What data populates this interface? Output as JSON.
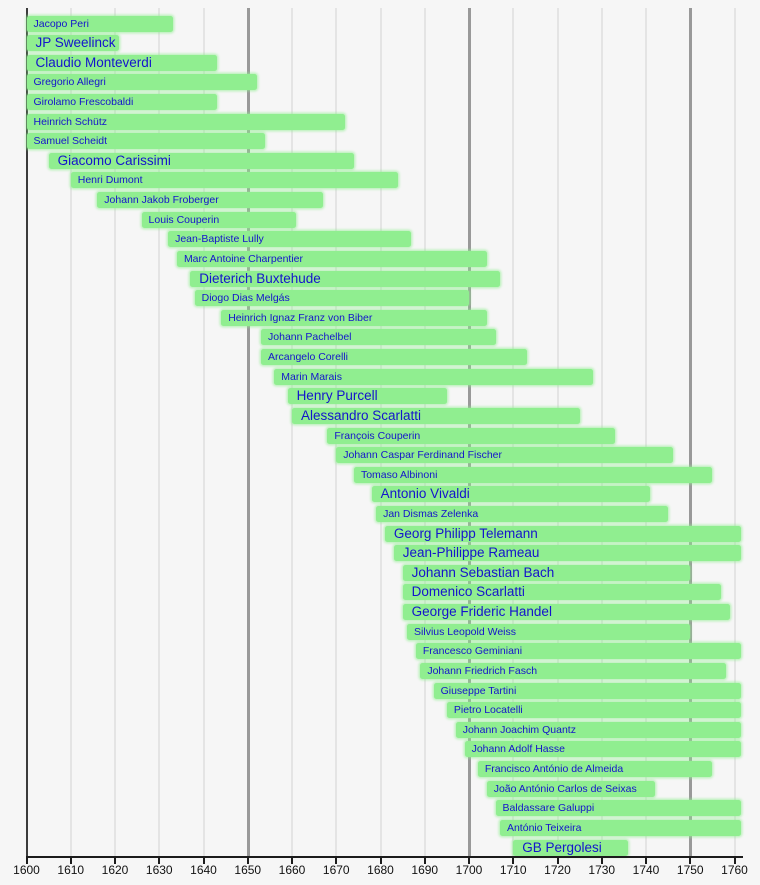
{
  "chart_data": {
    "type": "bar",
    "subtype": "timeline-gantt",
    "title": "",
    "xlabel": "",
    "ylabel": "",
    "description_colors": {
      "bar_fill": "#90EE90",
      "bar_label_text": "#1414CC",
      "background": "#F6F6F6",
      "minor_gridline": "#E4E4E4",
      "major_gridline": "#999999",
      "axis_line": "#1C1C1C"
    },
    "x_axis": {
      "min": 1600,
      "max": 1760,
      "tick_interval": 10,
      "ticks": [
        1600,
        1610,
        1620,
        1630,
        1640,
        1650,
        1660,
        1670,
        1680,
        1690,
        1700,
        1710,
        1720,
        1730,
        1740,
        1750,
        1760
      ],
      "major_gridlines": [
        1650,
        1700,
        1750
      ],
      "grid": "on",
      "legend": "none"
    },
    "bars": [
      {
        "name": "Jacopo Peri",
        "start": 1600,
        "end": 1633,
        "clip_start": true,
        "clip_end": false,
        "size": "small"
      },
      {
        "name": "JP Sweelinck",
        "start": 1600,
        "end": 1621,
        "clip_start": true,
        "clip_end": false,
        "size": "large"
      },
      {
        "name": "Claudio Monteverdi",
        "start": 1600,
        "end": 1643,
        "clip_start": true,
        "clip_end": false,
        "size": "large"
      },
      {
        "name": "Gregorio Allegri",
        "start": 1600,
        "end": 1652,
        "clip_start": true,
        "clip_end": false,
        "size": "small"
      },
      {
        "name": "Girolamo Frescobaldi",
        "start": 1600,
        "end": 1643,
        "clip_start": true,
        "clip_end": false,
        "size": "small"
      },
      {
        "name": "Heinrich Schütz",
        "start": 1600,
        "end": 1672,
        "clip_start": true,
        "clip_end": false,
        "size": "small"
      },
      {
        "name": "Samuel Scheidt",
        "start": 1600,
        "end": 1654,
        "clip_start": true,
        "clip_end": false,
        "size": "small"
      },
      {
        "name": "Giacomo Carissimi",
        "start": 1605,
        "end": 1674,
        "clip_start": false,
        "clip_end": false,
        "size": "large"
      },
      {
        "name": "Henri Dumont",
        "start": 1610,
        "end": 1684,
        "clip_start": false,
        "clip_end": false,
        "size": "small"
      },
      {
        "name": "Johann Jakob Froberger",
        "start": 1616,
        "end": 1667,
        "clip_start": false,
        "clip_end": false,
        "size": "small"
      },
      {
        "name": "Louis Couperin",
        "start": 1626,
        "end": 1661,
        "clip_start": false,
        "clip_end": false,
        "size": "small"
      },
      {
        "name": "Jean-Baptiste Lully",
        "start": 1632,
        "end": 1687,
        "clip_start": false,
        "clip_end": false,
        "size": "small"
      },
      {
        "name": "Marc Antoine Charpentier",
        "start": 1634,
        "end": 1704,
        "clip_start": false,
        "clip_end": false,
        "size": "small"
      },
      {
        "name": "Dieterich Buxtehude",
        "start": 1637,
        "end": 1707,
        "clip_start": false,
        "clip_end": false,
        "size": "large"
      },
      {
        "name": "Diogo Dias Melgás",
        "start": 1638,
        "end": 1700,
        "clip_start": false,
        "clip_end": false,
        "size": "small"
      },
      {
        "name": "Heinrich Ignaz Franz von Biber",
        "start": 1644,
        "end": 1704,
        "clip_start": false,
        "clip_end": false,
        "size": "small"
      },
      {
        "name": "Johann Pachelbel",
        "start": 1653,
        "end": 1706,
        "clip_start": false,
        "clip_end": false,
        "size": "small"
      },
      {
        "name": "Arcangelo Corelli",
        "start": 1653,
        "end": 1713,
        "clip_start": false,
        "clip_end": false,
        "size": "small"
      },
      {
        "name": "Marin Marais",
        "start": 1656,
        "end": 1728,
        "clip_start": false,
        "clip_end": false,
        "size": "small"
      },
      {
        "name": "Henry Purcell",
        "start": 1659,
        "end": 1695,
        "clip_start": false,
        "clip_end": false,
        "size": "large"
      },
      {
        "name": "Alessandro Scarlatti",
        "start": 1660,
        "end": 1725,
        "clip_start": false,
        "clip_end": false,
        "size": "large"
      },
      {
        "name": "François Couperin",
        "start": 1668,
        "end": 1733,
        "clip_start": false,
        "clip_end": false,
        "size": "small"
      },
      {
        "name": "Johann Caspar Ferdinand Fischer",
        "start": 1670,
        "end": 1746,
        "clip_start": false,
        "clip_end": false,
        "size": "small"
      },
      {
        "name": "Tomaso Albinoni",
        "start": 1674,
        "end": 1755,
        "clip_start": false,
        "clip_end": false,
        "size": "small"
      },
      {
        "name": "Antonio Vivaldi",
        "start": 1678,
        "end": 1741,
        "clip_start": false,
        "clip_end": false,
        "size": "large"
      },
      {
        "name": "Jan Dismas Zelenka",
        "start": 1679,
        "end": 1745,
        "clip_start": false,
        "clip_end": false,
        "size": "small"
      },
      {
        "name": "Georg Philipp Telemann",
        "start": 1681,
        "end": 1760,
        "clip_start": false,
        "clip_end": true,
        "size": "large"
      },
      {
        "name": "Jean-Philippe Rameau",
        "start": 1683,
        "end": 1760,
        "clip_start": false,
        "clip_end": true,
        "size": "large"
      },
      {
        "name": "Johann Sebastian Bach",
        "start": 1685,
        "end": 1750,
        "clip_start": false,
        "clip_end": false,
        "size": "large"
      },
      {
        "name": "Domenico Scarlatti",
        "start": 1685,
        "end": 1757,
        "clip_start": false,
        "clip_end": false,
        "size": "large"
      },
      {
        "name": "George Frideric Handel",
        "start": 1685,
        "end": 1759,
        "clip_start": false,
        "clip_end": false,
        "size": "large"
      },
      {
        "name": "Silvius Leopold Weiss",
        "start": 1686,
        "end": 1750,
        "clip_start": false,
        "clip_end": false,
        "size": "small"
      },
      {
        "name": "Francesco Geminiani",
        "start": 1688,
        "end": 1760,
        "clip_start": false,
        "clip_end": true,
        "size": "small"
      },
      {
        "name": "Johann Friedrich Fasch",
        "start": 1689,
        "end": 1758,
        "clip_start": false,
        "clip_end": false,
        "size": "small"
      },
      {
        "name": "Giuseppe Tartini",
        "start": 1692,
        "end": 1760,
        "clip_start": false,
        "clip_end": true,
        "size": "small"
      },
      {
        "name": "Pietro Locatelli",
        "start": 1695,
        "end": 1760,
        "clip_start": false,
        "clip_end": true,
        "size": "small"
      },
      {
        "name": "Johann Joachim Quantz",
        "start": 1697,
        "end": 1760,
        "clip_start": false,
        "clip_end": true,
        "size": "small"
      },
      {
        "name": "Johann Adolf Hasse",
        "start": 1699,
        "end": 1760,
        "clip_start": false,
        "clip_end": true,
        "size": "small"
      },
      {
        "name": "Francisco António de Almeida",
        "start": 1702,
        "end": 1755,
        "clip_start": false,
        "clip_end": false,
        "size": "small"
      },
      {
        "name": "João António Carlos de Seixas",
        "start": 1704,
        "end": 1742,
        "clip_start": false,
        "clip_end": false,
        "size": "small"
      },
      {
        "name": "Baldassare Galuppi",
        "start": 1706,
        "end": 1760,
        "clip_start": false,
        "clip_end": true,
        "size": "small"
      },
      {
        "name": "António Teixeira",
        "start": 1707,
        "end": 1760,
        "clip_start": false,
        "clip_end": true,
        "size": "small"
      },
      {
        "name": "GB Pergolesi",
        "start": 1710,
        "end": 1736,
        "clip_start": false,
        "clip_end": false,
        "size": "large"
      }
    ]
  }
}
